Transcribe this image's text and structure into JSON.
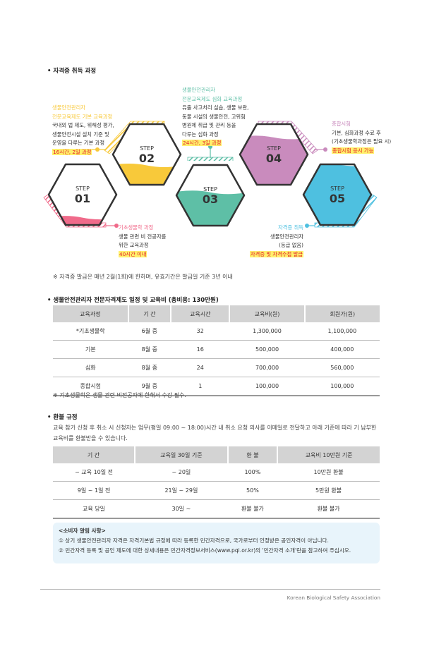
{
  "section1": {
    "title": "• 자격증 취득 과정"
  },
  "steps": [
    {
      "step": "STEP",
      "num": "01",
      "color": "#f06a8a",
      "fill_level": 0.12,
      "label": {
        "title": "기초생물학 과정",
        "lines": [
          "생물 관련 비 전공자를",
          "위한 교육과정"
        ],
        "highlight": "40시간 이내"
      }
    },
    {
      "step": "STEP",
      "num": "02",
      "color": "#f8c93a",
      "fill_level": 0.32,
      "label": {
        "title": "생물안전관리자",
        "title2": "전문교육제도 기본 교육과정",
        "lines": [
          "국내외 법 제도, 위해성 평가,",
          "생물안전시설 설치 기준 및",
          "운영을 다루는 기본 과정"
        ],
        "highlight": "16시간, 2일 과정"
      }
    },
    {
      "step": "STEP",
      "num": "03",
      "color": "#5ebfa6",
      "fill_level": 0.55,
      "label": {
        "title": "생물안전관리자",
        "title2": "전문교육제도 심화 교육과정",
        "lines": [
          "유출 사고처리 실습, 생물 보완,",
          "동물 시설의 생물안전, 고위험",
          "병원체 취급 및 관리 등을",
          "다루는 심화 과정"
        ],
        "highlight": "24시간, 3일 과정"
      }
    },
    {
      "step": "STEP",
      "num": "04",
      "color": "#c98bbd",
      "fill_level": 0.78,
      "label": {
        "title": "종합시험",
        "lines": [
          "기본, 심화과정 수료 후",
          "(기초생물학과정은 필요 시)"
        ],
        "highlight": "종합시험 응시 가능"
      }
    },
    {
      "step": "STEP",
      "num": "05",
      "color": "#4ec0e0",
      "fill_level": 1.0,
      "label": {
        "title": "자격증 취득",
        "lines": [
          "생물안전관리자",
          "(등급 없음)"
        ],
        "highlight": "자격증 및 자격수첩 발급"
      }
    }
  ],
  "section1_note": "※ 자격증 발급은 매년 2월(1회)에 한하며, 유효기간은 발급일 기준 3년 이내",
  "section2": {
    "title": "• 생물안전관리자 전문자격제도 일정 및 교육비 (총비용: 130만원)",
    "headers": [
      "교육과정",
      "기 간",
      "교육시간",
      "교육비(원)",
      "회원가(원)"
    ],
    "rows": [
      [
        "*기초생물학",
        "6월 중",
        "32",
        "1,300,000",
        "1,100,000"
      ],
      [
        "기본",
        "8월 중",
        "16",
        "500,000",
        "400,000"
      ],
      [
        "심화",
        "8월 중",
        "24",
        "700,000",
        "560,000"
      ],
      [
        "종합시험",
        "9월 중",
        "1",
        "100,000",
        "100,000"
      ]
    ],
    "note": "※ 기초생물학은 생물 관련 비전공자에 한해서 수강 필수."
  },
  "section3": {
    "title": "• 환불 규정",
    "desc1": "교육 참가 신청 후 취소 시 신청자는 업무(평일 09:00 ~ 18:00)시간 내 취소 요청 의사를 이메일로 전달하고 아래 기준에 따라 기 납부한",
    "desc2": "교육비를 환불받을 수 있습니다.",
    "headers": [
      "기 간",
      "교육일 30일 기준",
      "환 불",
      "교육비 10만원 기준"
    ],
    "rows": [
      [
        "~ 교육 10일 전",
        "~ 20일",
        "100%",
        "10만원 환불"
      ],
      [
        "9일 ~ 1일 전",
        "21일 ~ 29일",
        "50%",
        "5만원 환불"
      ],
      [
        "교육 당일",
        "30일 ~",
        "환불 불가",
        "환불 불가"
      ]
    ]
  },
  "notice": {
    "title": "<소비자 알림 사항>",
    "line1": "① 상기 생물안전관리자 자격은 자격기본법 규정에 따라 등록한 민간자격으로, 국가로부터 인정받은 공인자격이 아닙니다.",
    "line2": "② 민간자격 등록 및 공인 제도에 대한 상세내용은 민간자격정보서비스(www.pqi.or.kr)의 '민간자격 소개'란을 참고하여 주십시오."
  },
  "footer": "Korean Biological Safety Association"
}
